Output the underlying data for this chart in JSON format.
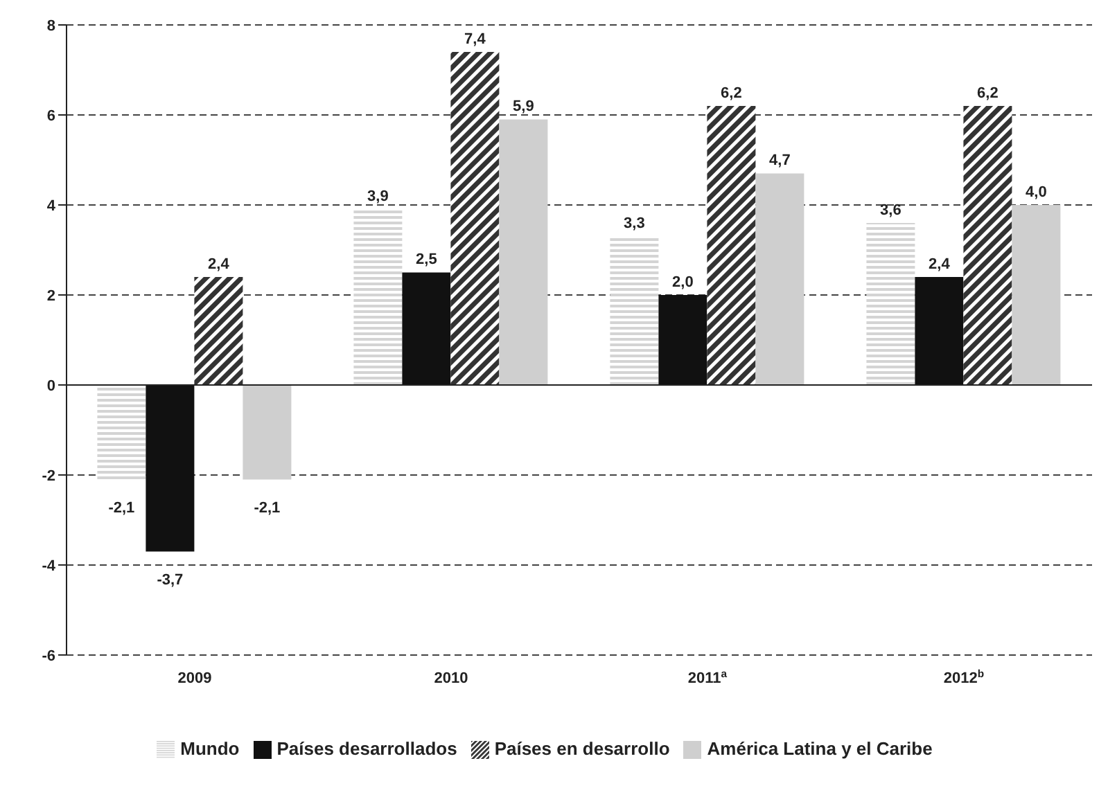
{
  "chart_data": {
    "type": "bar",
    "categories": [
      "2009",
      "2010",
      "2011$^{a}$",
      "2012$^{b}$"
    ],
    "series": [
      {
        "name": "Mundo",
        "color": "#d4d4d4",
        "values": [
          -2.1,
          3.9,
          3.3,
          3.6
        ],
        "value_labels": [
          "-2,1",
          "3,9",
          "3,3",
          "3,6"
        ]
      },
      {
        "name": "Países desarrollados",
        "color": "#111111",
        "values": [
          -3.7,
          2.5,
          2.0,
          2.4
        ],
        "value_labels": [
          "-3,7",
          "2,5",
          "2,0",
          "2,4"
        ]
      },
      {
        "name": "Países en desarrollo",
        "color": "#333333",
        "values": [
          2.4,
          7.4,
          6.2,
          6.2
        ],
        "value_labels": [
          "2,4",
          "7,4",
          "6,2",
          "6,2"
        ]
      },
      {
        "name": "América Latina y el Caribe",
        "color": "#cfcfcf",
        "values": [
          -2.1,
          5.9,
          4.7,
          4.0
        ],
        "value_labels": [
          "-2,1",
          "5,9",
          "4,7",
          "4,0"
        ]
      }
    ],
    "ylim": [
      -6,
      8
    ],
    "yticks": [
      -6,
      -4,
      -2,
      0,
      2,
      4,
      6,
      8
    ],
    "grid": "y",
    "legend": "bottom"
  }
}
